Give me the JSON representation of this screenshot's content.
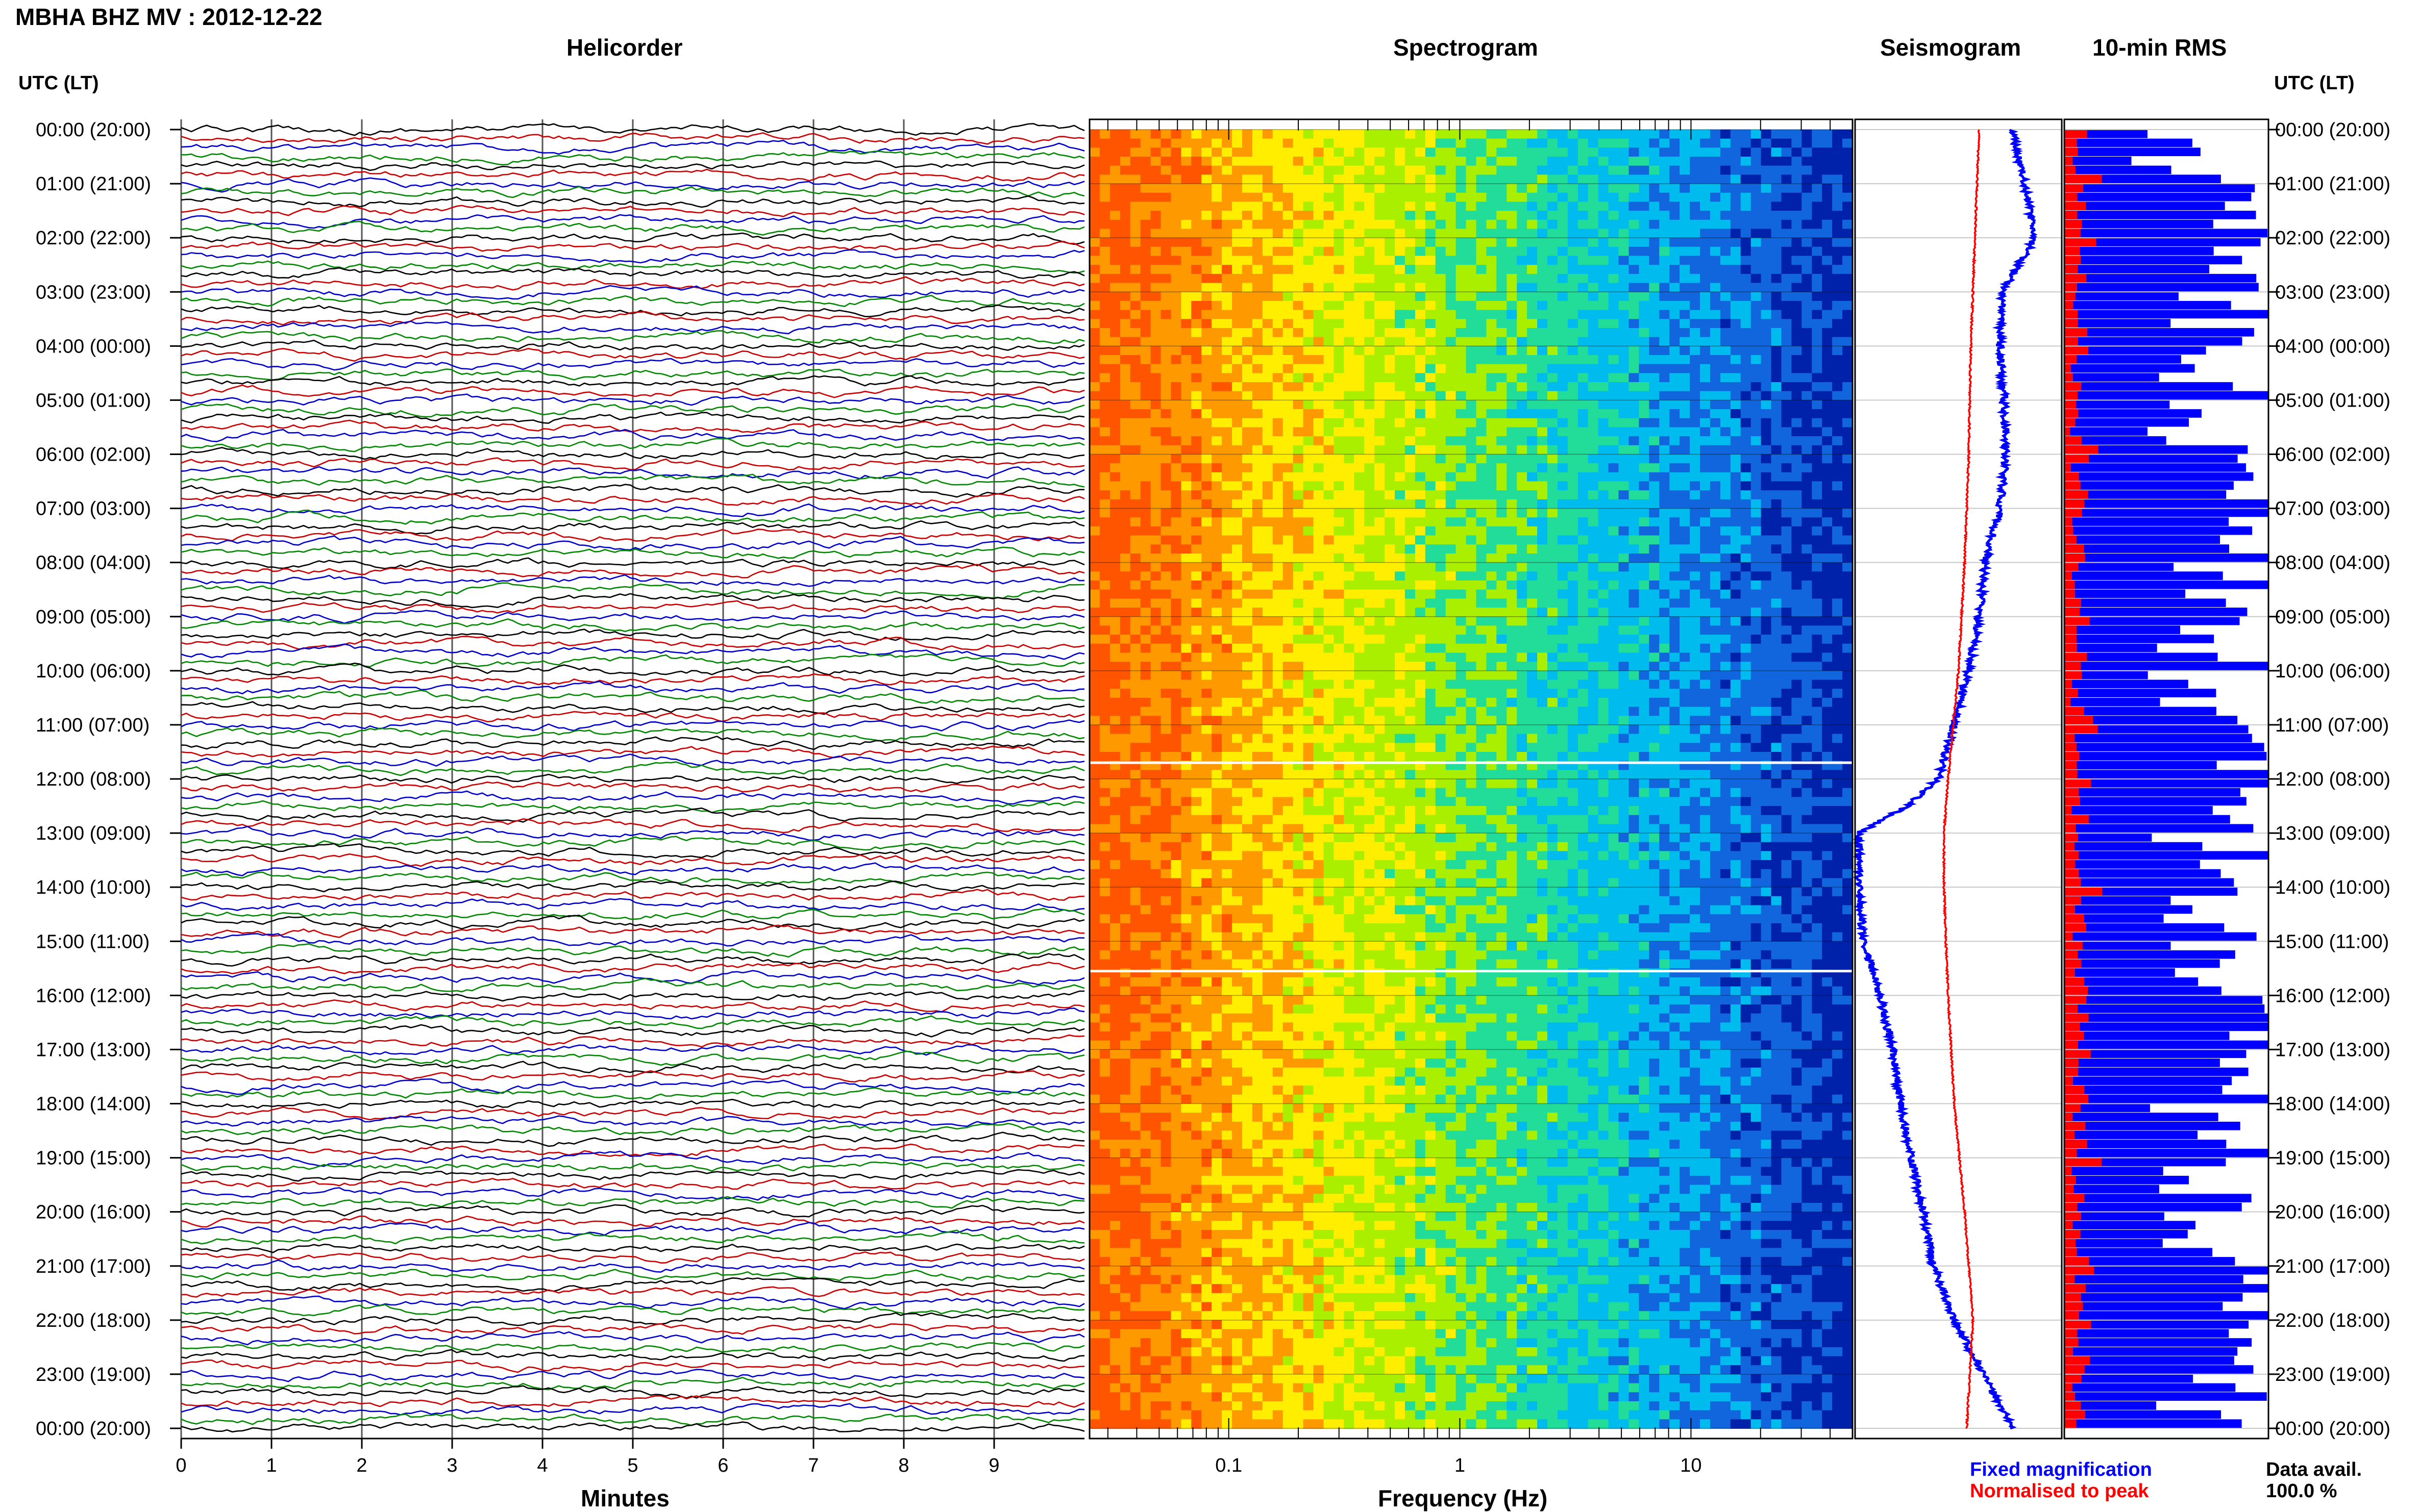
{
  "figure_title": "MBHA BHZ MV : 2012-12-22",
  "left_axis_label": "UTC (LT)",
  "right_axis_label": "UTC (LT)",
  "colors": {
    "trace_cycle": [
      "#000000",
      "#cc0000",
      "#0000cc",
      "#008800"
    ],
    "fixed": "#0000ff",
    "normalised": "#ff0000",
    "grid": "#c8c8c8"
  },
  "legend": {
    "fixed": "Fixed magnification",
    "normalised": "Normalised to peak",
    "availability_label": "Data avail.",
    "availability_value": "100.0 %"
  },
  "chart_data": [
    {
      "type": "line",
      "title": "Helicorder",
      "xlabel": "Minutes",
      "ylabel": "UTC (LT)",
      "x_ticks": [
        "0",
        "1",
        "2",
        "3",
        "4",
        "5",
        "6",
        "7",
        "8",
        "9"
      ],
      "xlim": [
        0,
        10
      ],
      "y_ticks": [
        "00:00 (20:00)",
        "01:00 (21:00)",
        "02:00 (22:00)",
        "03:00 (23:00)",
        "04:00 (00:00)",
        "05:00 (01:00)",
        "06:00 (02:00)",
        "07:00 (03:00)",
        "08:00 (04:00)",
        "09:00 (05:00)",
        "10:00 (06:00)",
        "11:00 (07:00)",
        "12:00 (08:00)",
        "13:00 (09:00)",
        "14:00 (10:00)",
        "15:00 (11:00)",
        "16:00 (12:00)",
        "17:00 (13:00)",
        "18:00 (14:00)",
        "19:00 (15:00)",
        "20:00 (16:00)",
        "21:00 (17:00)",
        "22:00 (18:00)",
        "23:00 (19:00)",
        "00:00 (20:00)"
      ],
      "lines_per_hour": 6,
      "grid": true
    },
    {
      "type": "heatmap",
      "title": "Spectrogram",
      "xlabel": "Frequency (Hz)",
      "x_scale": "log",
      "x_ticks": [
        "0.1",
        "1",
        "10"
      ],
      "xlim": [
        0.025,
        50
      ],
      "colormap": [
        "#ff5500",
        "#ff9900",
        "#ffee00",
        "#aaee00",
        "#22dd99",
        "#00bbee",
        "#1166dd",
        "#0022aa"
      ],
      "white_lines_utc": [
        11.7,
        15.55
      ]
    },
    {
      "type": "line",
      "title": "Seismogram",
      "series": [
        {
          "name": "Fixed magnification",
          "y_hours": [
            0,
            1,
            2,
            3,
            4,
            5,
            6,
            7,
            8,
            9,
            10,
            11,
            12,
            12.5,
            13,
            14,
            15,
            16,
            17,
            18,
            19,
            20,
            21,
            22,
            23,
            24
          ],
          "values": [
            0.76,
            0.82,
            0.87,
            0.71,
            0.7,
            0.72,
            0.73,
            0.7,
            0.63,
            0.6,
            0.55,
            0.48,
            0.4,
            0.25,
            0.02,
            0.02,
            0.04,
            0.12,
            0.18,
            0.22,
            0.27,
            0.33,
            0.38,
            0.48,
            0.62,
            0.76
          ]
        },
        {
          "name": "Normalised to peak",
          "y_hours": [
            0,
            2,
            4,
            6,
            8,
            10,
            12,
            13,
            14,
            16,
            18,
            20,
            22,
            24
          ],
          "values": [
            0.6,
            0.58,
            0.56,
            0.55,
            0.53,
            0.5,
            0.45,
            0.43,
            0.43,
            0.45,
            0.48,
            0.53,
            0.57,
            0.54
          ]
        }
      ],
      "grid": true
    },
    {
      "type": "bar",
      "title": "10-min RMS",
      "orientation": "horizontal",
      "interval_minutes": 10,
      "series": [
        {
          "name": "Fixed magnification",
          "values": [
            0.52,
            0.72,
            0.66,
            0.45,
            0.62,
            0.82,
            0.95,
            0.98,
            0.91,
            0.94,
            0.83,
            0.97,
            0.95,
            0.83,
            0.87,
            0.74,
            0.82,
            0.94,
            0.52,
            0.78,
            0.95,
            0.55,
            0.83,
            0.95,
            0.74,
            0.57,
            0.63,
            0.57,
            0.81,
            0.97
          ]
        },
        {
          "name": "Normalised to peak",
          "values": [
            0.08,
            0.05,
            0.06,
            0.04,
            0.07,
            0.15,
            0.12,
            0.05,
            0.09,
            0.06,
            0.1,
            0.08,
            0.12,
            0.06,
            0.07,
            0.05,
            0.1,
            0.09,
            0.06,
            0.05,
            0.08,
            0.07,
            0.09,
            0.06,
            0.14,
            0.06,
            0.05,
            0.07,
            0.08,
            0.06
          ]
        }
      ]
    }
  ]
}
